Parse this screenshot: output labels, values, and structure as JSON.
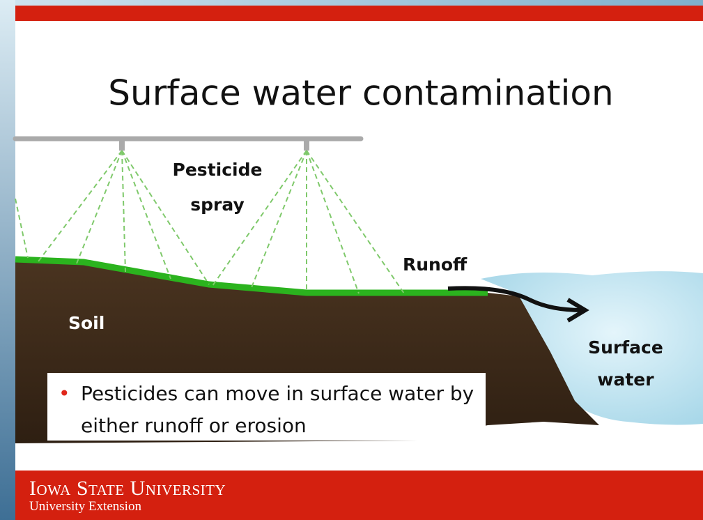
{
  "title": "Surface water contamination",
  "labels": {
    "pesticide_spray": [
      "Pesticide",
      "spray"
    ],
    "runoff": "Runoff",
    "soil": "Soil",
    "surface_water": [
      "Surface",
      "water"
    ]
  },
  "bullets": [
    "Pesticides can move in surface water by either runoff or erosion"
  ],
  "footer": {
    "university": "Iowa State University",
    "unit": "University Extension"
  }
}
